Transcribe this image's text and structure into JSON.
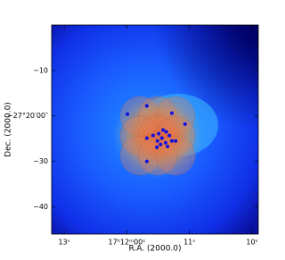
{
  "chart_data": {
    "type": "scatter",
    "x_label": "R.A. (2000.0)",
    "y_label": "Dec. (2000.0)",
    "xlim": [
      13.2,
      9.9
    ],
    "ylim": [
      -46,
      0
    ],
    "xticks": [
      {
        "value": 13,
        "label": "13ˢ"
      },
      {
        "value": 12,
        "label": "17ʰ12ᵐ00ˢ"
      },
      {
        "value": 11,
        "label": "11ˢ"
      },
      {
        "value": 10,
        "label": "10ˢ"
      }
    ],
    "yticks": [
      {
        "value": -10,
        "label": "−10"
      },
      {
        "value": -20,
        "label": "−27°20′00″"
      },
      {
        "value": -30,
        "label": "−30"
      },
      {
        "value": -40,
        "label": "−40"
      }
    ],
    "color": "#1010e0",
    "x": [
      11.68,
      11.99,
      11.28,
      11.07,
      11.68,
      11.49,
      11.42,
      11.37,
      11.32,
      11.44,
      11.51,
      11.38,
      11.28,
      11.22,
      11.35,
      11.52,
      11.68,
      11.58,
      11.46
    ],
    "values": [
      -17.8,
      -19.6,
      -19.4,
      -21.8,
      -24.9,
      -23.9,
      -23.1,
      -23.5,
      -24.3,
      -24.9,
      -25.5,
      -25.9,
      -25.5,
      -25.5,
      -26.7,
      -26.9,
      -30.0,
      -24.3,
      -26.3
    ]
  }
}
